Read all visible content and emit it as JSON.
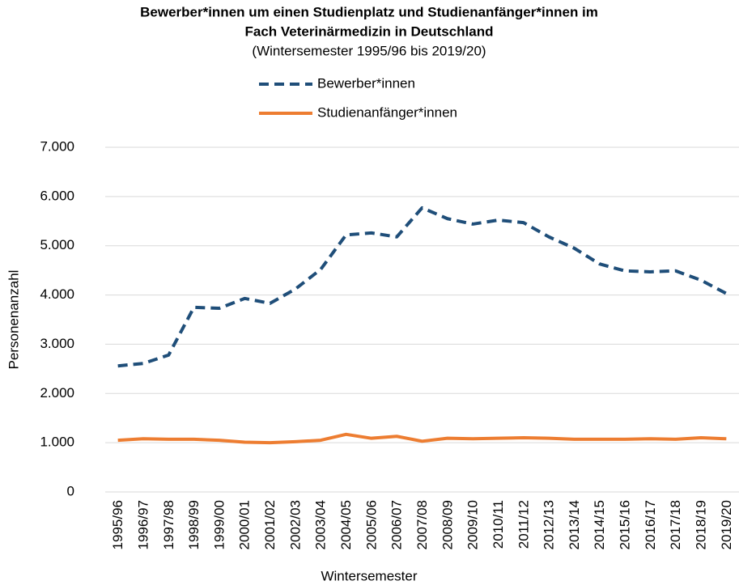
{
  "chart_data": {
    "type": "line",
    "title": [
      "Bewerber*innen um einen Studienplatz und Studienanfänger*innen im",
      "Fach Veterinärmedizin in Deutschland"
    ],
    "subtitle": "(Wintersemester 1995/96 bis 2019/20)",
    "x_label": "Wintersemester",
    "y_label": "Personenanzahl",
    "categories": [
      "1995/96",
      "1996/97",
      "1997/98",
      "1998/99",
      "1999/00",
      "2000/01",
      "2001/02",
      "2002/03",
      "2003/04",
      "2004/05",
      "2005/06",
      "2006/07",
      "2007/08",
      "2008/09",
      "2009/10",
      "2010/11",
      "2011/12",
      "2012/13",
      "2013/14",
      "2014/15",
      "2015/16",
      "2016/17",
      "2017/18",
      "2018/19",
      "2019/20"
    ],
    "series": [
      {
        "name": "Bewerber*innen",
        "color": "#1f4e79",
        "dashed": true,
        "values": [
          2560,
          2610,
          2780,
          3750,
          3730,
          3930,
          3830,
          4120,
          4520,
          5220,
          5260,
          5180,
          5770,
          5550,
          5440,
          5520,
          5470,
          5180,
          4950,
          4630,
          4490,
          4470,
          4490,
          4300,
          4030
        ]
      },
      {
        "name": "Studienanfänger*innen",
        "color": "#ed7d31",
        "dashed": false,
        "values": [
          1050,
          1080,
          1070,
          1070,
          1050,
          1010,
          1000,
          1020,
          1050,
          1170,
          1090,
          1130,
          1030,
          1090,
          1080,
          1090,
          1100,
          1090,
          1070,
          1070,
          1070,
          1080,
          1070,
          1100,
          1080
        ]
      }
    ],
    "ylim": [
      0,
      7000
    ],
    "yticks": [
      0,
      {
        "value": 1000,
        "label": "1.000"
      },
      {
        "value": 2000,
        "label": "2.000"
      },
      {
        "value": 3000,
        "label": "3.000"
      },
      {
        "value": 4000,
        "label": "4.000"
      },
      {
        "value": 5000,
        "label": "5.000"
      },
      {
        "value": 6000,
        "label": "6.000"
      },
      {
        "value": 7000,
        "label": "7.000"
      }
    ],
    "grid": true,
    "legend": "top"
  }
}
